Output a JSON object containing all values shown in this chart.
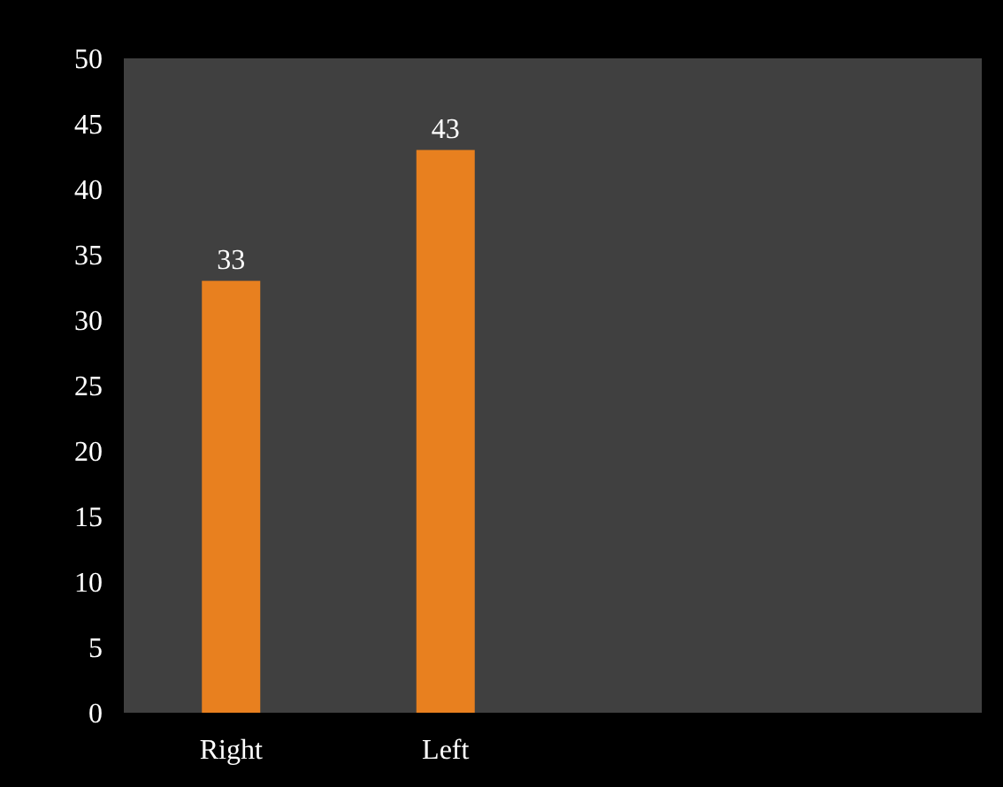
{
  "chart_data": {
    "type": "bar",
    "categories": [
      "Right",
      "Left",
      null,
      null
    ],
    "values": [
      33,
      43,
      null,
      null
    ],
    "color": "#e8801f",
    "ylim": [
      0,
      50
    ],
    "yticks": [
      0,
      5,
      10,
      15,
      20,
      25,
      30,
      35,
      40,
      45,
      50
    ],
    "data_labels": true,
    "grid": false
  }
}
